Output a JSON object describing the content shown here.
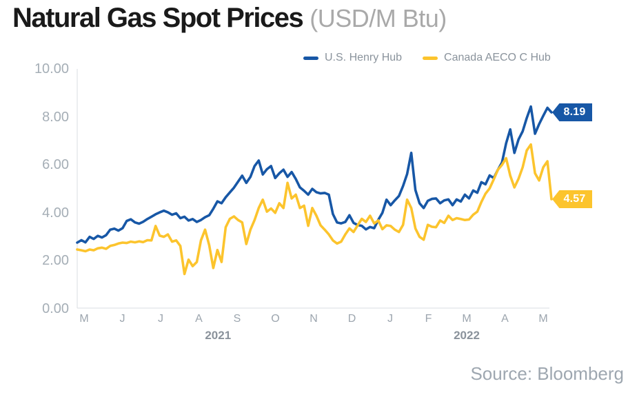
{
  "header": {
    "title": "Natural Gas Spot Prices",
    "unit": "(USD/M Btu)"
  },
  "legend": {
    "items": [
      {
        "id": "henry-hub",
        "label": "U.S. Henry Hub",
        "color": "#1757A6"
      },
      {
        "id": "aeco-hub",
        "label": "Canada AECO C Hub",
        "color": "#FCC42D"
      }
    ]
  },
  "source": {
    "text": "Source: Bloomberg"
  },
  "chart_data": {
    "type": "line",
    "title": "Natural Gas Spot Prices",
    "unit": "USD/M Btu",
    "grid": false,
    "legend_position": "top",
    "ylim": [
      0,
      10
    ],
    "y_ticks": [
      {
        "value": 10,
        "label": "10.00"
      },
      {
        "value": 8,
        "label": "8.00"
      },
      {
        "value": 6,
        "label": "6.00"
      },
      {
        "value": 4,
        "label": "4.00"
      },
      {
        "value": 2,
        "label": "2.00"
      },
      {
        "value": 0,
        "label": "0.00"
      }
    ],
    "x_unit": "months since May 2021 tick",
    "x_ticks": [
      {
        "m": 0,
        "label": "M"
      },
      {
        "m": 1,
        "label": "J"
      },
      {
        "m": 2,
        "label": "J"
      },
      {
        "m": 3,
        "label": "A"
      },
      {
        "m": 4,
        "label": "S"
      },
      {
        "m": 5,
        "label": "O"
      },
      {
        "m": 6,
        "label": "N"
      },
      {
        "m": 7,
        "label": "D"
      },
      {
        "m": 8,
        "label": "J"
      },
      {
        "m": 9,
        "label": "F"
      },
      {
        "m": 10,
        "label": "M"
      },
      {
        "m": 11,
        "label": "A"
      },
      {
        "m": 12,
        "label": "M"
      }
    ],
    "year_labels": [
      {
        "m": 3.5,
        "label": "2021"
      },
      {
        "m": 10,
        "label": "2022"
      }
    ],
    "series": [
      {
        "id": "henry-hub",
        "name": "U.S. Henry Hub",
        "color": "#1757A6",
        "end_label": "8.19",
        "x_start_m": -0.18,
        "x_step_m": 0.1078,
        "values": [
          2.76,
          2.86,
          2.77,
          3.0,
          2.91,
          3.04,
          2.97,
          3.07,
          3.3,
          3.34,
          3.26,
          3.36,
          3.66,
          3.73,
          3.6,
          3.55,
          3.63,
          3.74,
          3.84,
          3.94,
          4.02,
          4.09,
          4.02,
          3.92,
          3.98,
          3.78,
          3.84,
          3.68,
          3.74,
          3.62,
          3.7,
          3.82,
          3.9,
          4.17,
          4.48,
          4.4,
          4.65,
          4.85,
          5.05,
          5.3,
          5.55,
          5.25,
          5.5,
          5.95,
          6.18,
          5.6,
          5.82,
          5.95,
          5.45,
          5.65,
          5.8,
          5.5,
          5.7,
          5.41,
          5.06,
          4.92,
          4.76,
          5.0,
          4.86,
          4.81,
          4.83,
          4.76,
          3.95,
          3.6,
          3.56,
          3.62,
          3.9,
          3.58,
          3.49,
          3.46,
          3.31,
          3.41,
          3.36,
          3.71,
          4.0,
          4.55,
          4.32,
          4.52,
          4.7,
          5.12,
          5.62,
          6.5,
          4.95,
          4.4,
          4.2,
          4.5,
          4.58,
          4.6,
          4.4,
          4.52,
          4.56,
          4.32,
          4.56,
          4.47,
          4.76,
          4.6,
          4.93,
          4.84,
          5.28,
          5.19,
          5.56,
          5.45,
          5.8,
          6.1,
          6.9,
          7.48,
          6.5,
          7.06,
          7.4,
          7.95,
          8.43,
          7.3,
          7.7,
          8.05,
          8.38,
          8.19
        ]
      },
      {
        "id": "aeco-hub",
        "name": "Canada AECO C Hub",
        "color": "#FCC42D",
        "end_label": "4.57",
        "x_start_m": -0.18,
        "x_step_m": 0.1078,
        "values": [
          2.47,
          2.44,
          2.4,
          2.47,
          2.44,
          2.52,
          2.55,
          2.5,
          2.62,
          2.66,
          2.72,
          2.76,
          2.74,
          2.8,
          2.77,
          2.81,
          2.78,
          2.86,
          2.85,
          3.45,
          3.05,
          3.0,
          3.1,
          2.8,
          2.85,
          2.62,
          1.45,
          2.05,
          1.78,
          1.95,
          2.85,
          3.3,
          2.65,
          1.7,
          2.45,
          1.95,
          3.4,
          3.75,
          3.85,
          3.7,
          3.6,
          2.7,
          3.3,
          3.7,
          4.2,
          4.55,
          4.05,
          4.18,
          4.0,
          4.4,
          4.2,
          5.25,
          4.6,
          4.76,
          4.2,
          4.3,
          3.46,
          4.2,
          3.88,
          3.48,
          3.3,
          3.1,
          2.85,
          2.72,
          2.8,
          3.1,
          3.35,
          3.2,
          3.48,
          3.75,
          3.62,
          3.88,
          3.56,
          3.68,
          3.32,
          3.48,
          3.45,
          3.3,
          3.2,
          3.5,
          4.55,
          4.2,
          3.35,
          3.0,
          2.88,
          3.5,
          3.42,
          3.4,
          3.68,
          3.58,
          3.88,
          3.7,
          3.78,
          3.74,
          3.7,
          3.72,
          3.92,
          4.05,
          4.45,
          4.8,
          5.02,
          5.4,
          5.8,
          6.0,
          6.28,
          5.55,
          5.06,
          5.42,
          5.9,
          6.6,
          6.85,
          5.65,
          5.35,
          5.9,
          6.15,
          4.57
        ]
      }
    ]
  }
}
